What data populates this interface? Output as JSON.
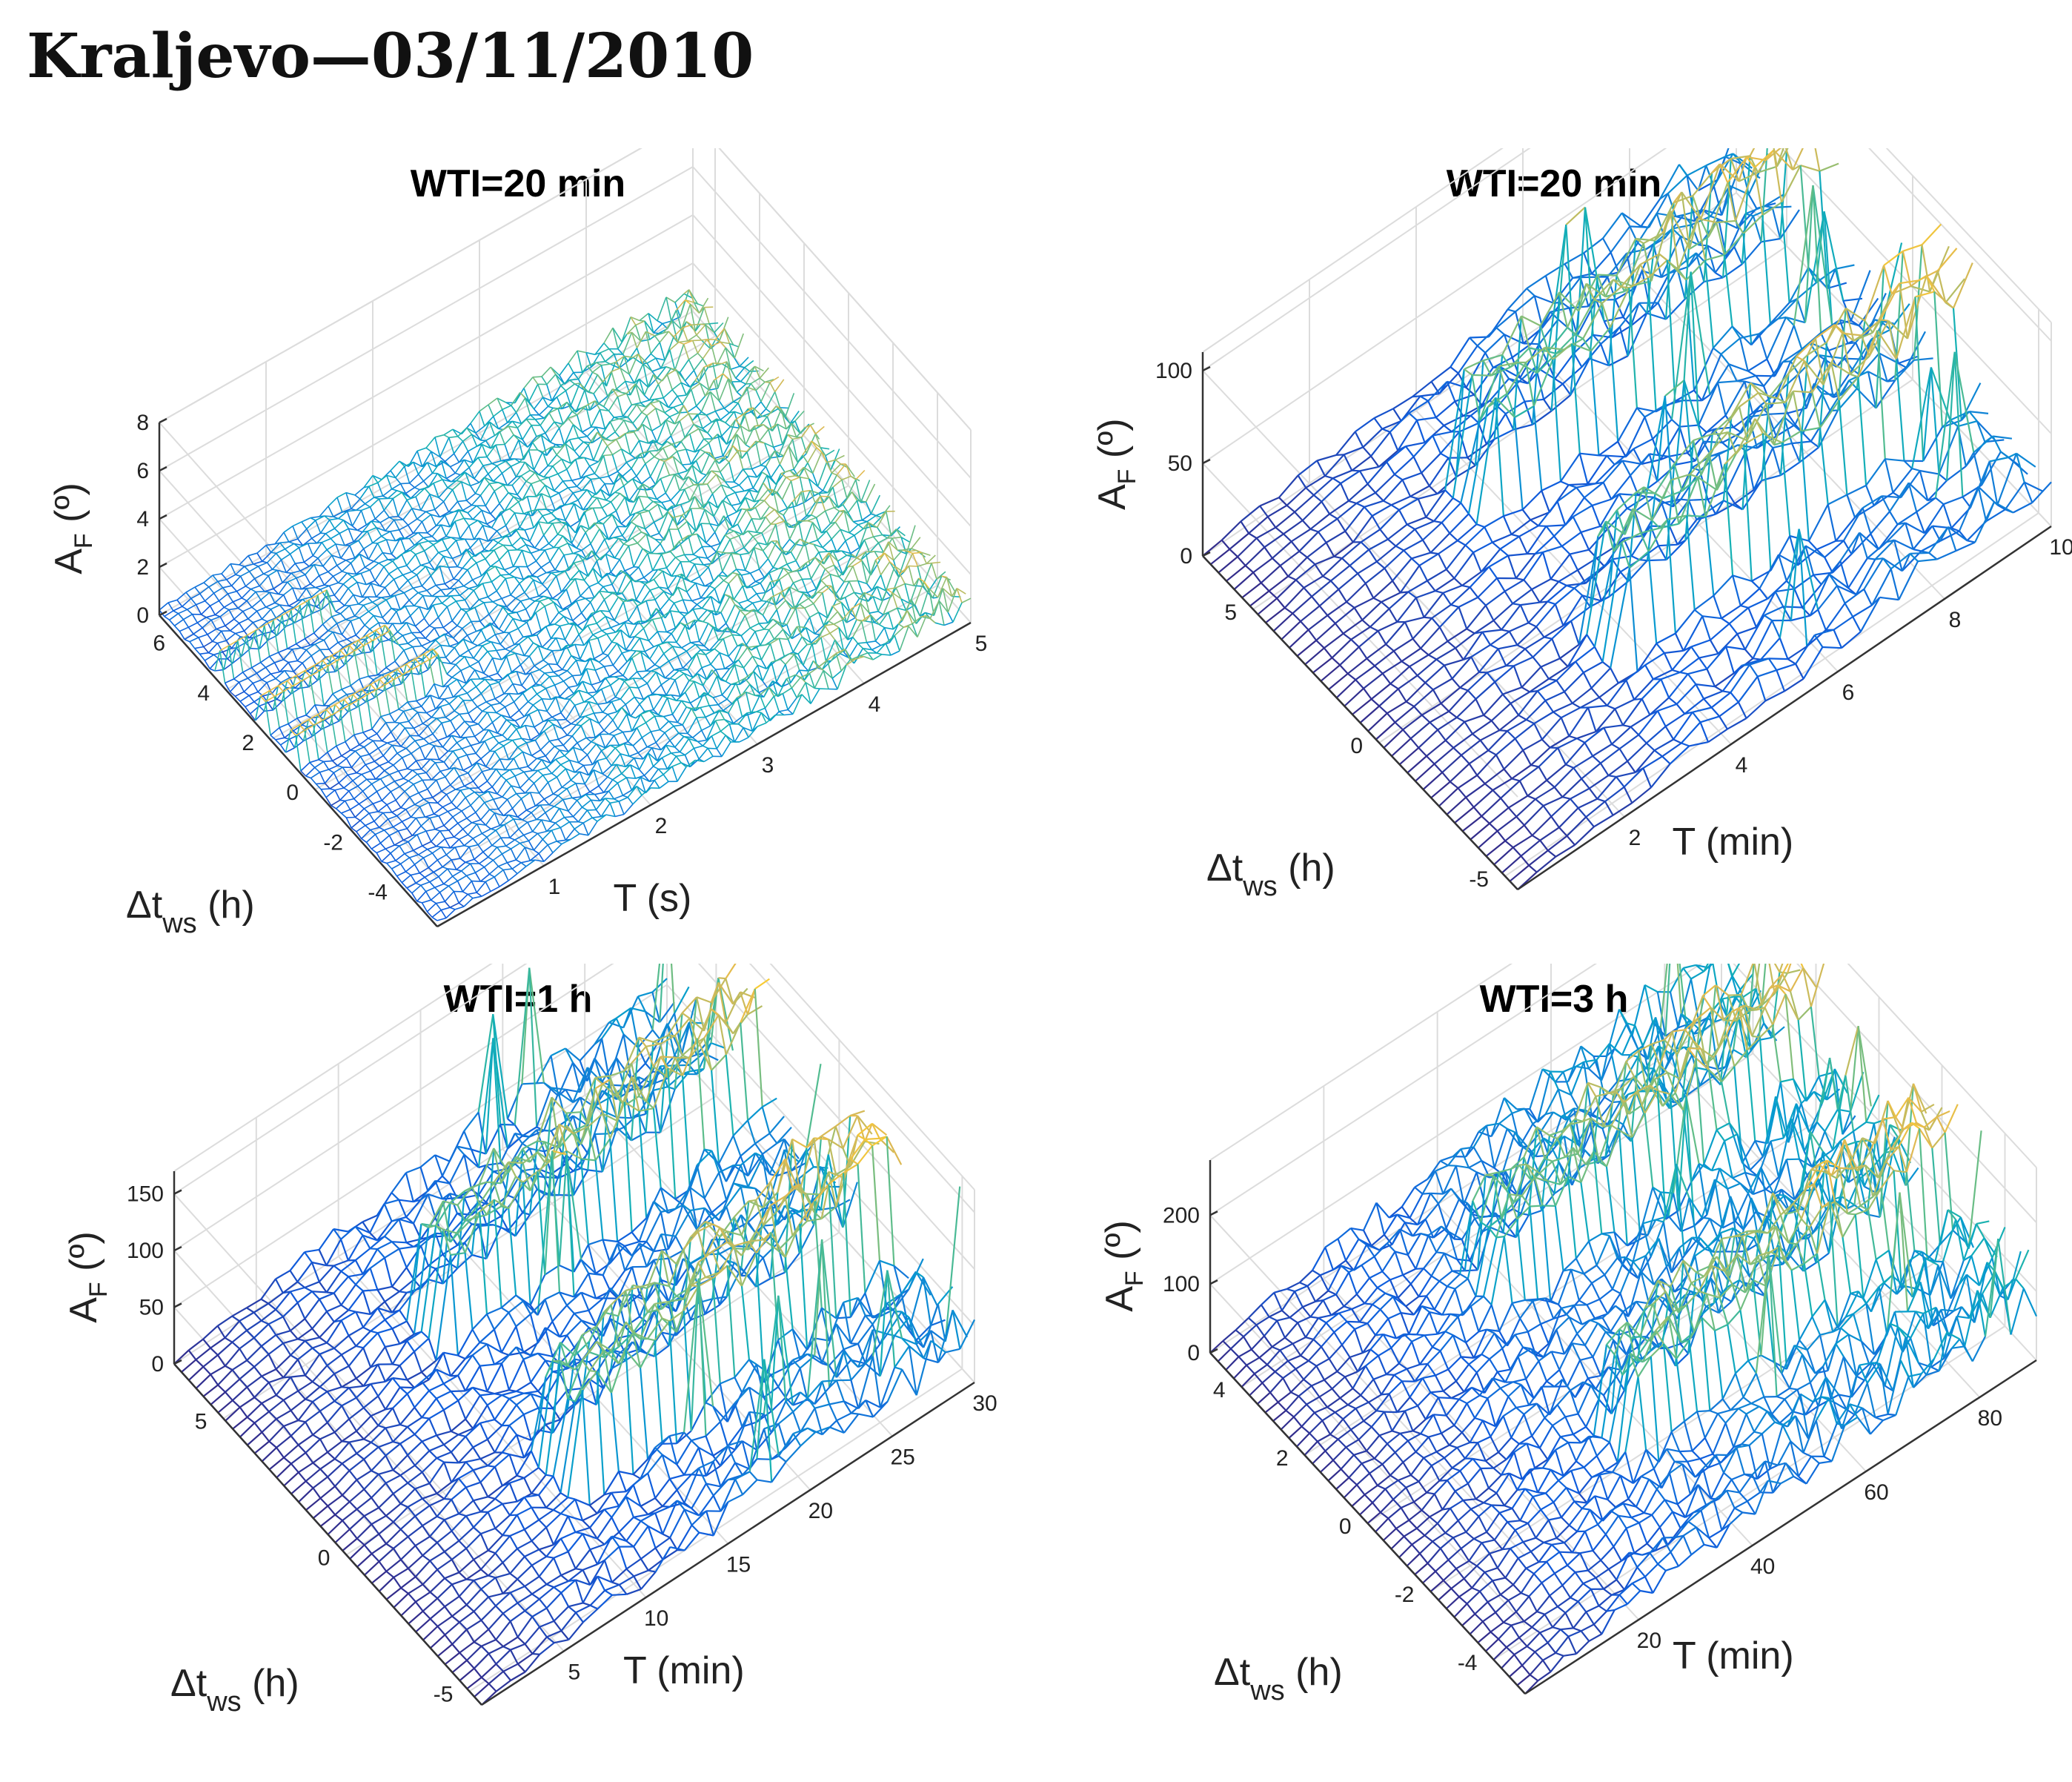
{
  "title": "Kraljevo—03/11/2010",
  "chart_data": [
    {
      "type": "surface",
      "title": "WTI=20 min",
      "zlabel": "A_F (º)",
      "ylabel": "Δt_ws (h)",
      "xlabel": "T (s)",
      "xlim": [
        0,
        5
      ],
      "ylim": [
        -5.5,
        7
      ],
      "zlim": [
        0,
        8
      ],
      "x_ticks": [
        1,
        2,
        3,
        4,
        5
      ],
      "y_ticks": [
        -4,
        -2,
        0,
        2,
        4,
        6
      ],
      "z_ticks": [
        0,
        2,
        4,
        6,
        8
      ],
      "typical_z_range": [
        0,
        1.5
      ],
      "peak_value": 1.5,
      "colormap": "parula",
      "grid": true
    },
    {
      "type": "surface",
      "title": "WTI=20 min",
      "zlabel": "A_F (º)",
      "ylabel": "Δt_ws (h)",
      "xlabel": "T (min)",
      "xlim": [
        0,
        10
      ],
      "ylim": [
        -5.5,
        7
      ],
      "zlim": [
        0,
        110
      ],
      "x_ticks": [
        2,
        4,
        6,
        8,
        10
      ],
      "y_ticks": [
        -5,
        0,
        5
      ],
      "z_ticks": [
        0,
        50,
        100
      ],
      "typical_z_range": [
        0,
        40
      ],
      "peak_value": 105,
      "colormap": "parula",
      "grid": true
    },
    {
      "type": "surface",
      "title": "WTI=1 h",
      "zlabel": "A_F (º)",
      "ylabel": "Δt_ws (h)",
      "xlabel": "T (min)",
      "xlim": [
        0,
        30
      ],
      "ylim": [
        -5.5,
        7
      ],
      "zlim": [
        0,
        170
      ],
      "x_ticks": [
        5,
        10,
        15,
        20,
        25,
        30
      ],
      "y_ticks": [
        -5,
        0,
        5
      ],
      "z_ticks": [
        0,
        50,
        100,
        150
      ],
      "typical_z_range": [
        0,
        70
      ],
      "peak_value": 160,
      "colormap": "parula",
      "grid": true
    },
    {
      "type": "surface",
      "title": "WTI=3 h",
      "zlabel": "A_F (º)",
      "ylabel": "Δt_ws (h)",
      "xlabel": "T (min)",
      "xlim": [
        0,
        90
      ],
      "ylim": [
        -5,
        5
      ],
      "zlim": [
        0,
        280
      ],
      "x_ticks": [
        20,
        40,
        60,
        80
      ],
      "y_ticks": [
        -4,
        -2,
        0,
        2,
        4
      ],
      "z_ticks": [
        0,
        100,
        200
      ],
      "typical_z_range": [
        0,
        150
      ],
      "peak_value": 260,
      "colormap": "parula",
      "grid": true
    }
  ]
}
